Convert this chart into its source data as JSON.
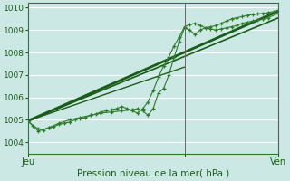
{
  "title": "",
  "xlabel": "Pression niveau de la mer( hPa )",
  "ylabel": "",
  "bg_color": "#cce8e4",
  "plot_bg_color": "#cce8e4",
  "grid_color": "#ffffff",
  "line_color_dark": "#1a5c1a",
  "line_color_med": "#2d7a2d",
  "ylim": [
    1003.5,
    1010.2
  ],
  "yticks": [
    1004,
    1005,
    1006,
    1007,
    1008,
    1009,
    1010
  ],
  "xlim": [
    0,
    48
  ],
  "xtick_positions": [
    0,
    30,
    48
  ],
  "xtick_labels": [
    "Jeu",
    "",
    "Ven"
  ],
  "vline_x": 30,
  "trend1_x": [
    0,
    48
  ],
  "trend1_y": [
    1004.95,
    1009.85
  ],
  "trend2_x": [
    0,
    48
  ],
  "trend2_y": [
    1004.95,
    1009.55
  ],
  "trend3_x": [
    0,
    30
  ],
  "trend3_y": [
    1004.95,
    1007.35
  ],
  "line1_x": [
    0,
    1,
    2,
    3,
    4,
    5,
    6,
    7,
    8,
    9,
    10,
    11,
    12,
    13,
    14,
    15,
    16,
    17,
    18,
    19,
    20,
    21,
    22,
    23,
    24,
    25,
    26,
    27,
    28,
    29,
    30,
    31,
    32,
    33,
    34,
    35,
    36,
    37,
    38,
    39,
    40,
    41,
    42,
    43,
    44,
    45,
    46,
    47,
    48
  ],
  "line1_y": [
    1004.95,
    1004.75,
    1004.6,
    1004.55,
    1004.65,
    1004.7,
    1004.8,
    1004.85,
    1004.9,
    1005.0,
    1005.05,
    1005.1,
    1005.2,
    1005.25,
    1005.35,
    1005.4,
    1005.45,
    1005.5,
    1005.6,
    1005.5,
    1005.4,
    1005.3,
    1005.5,
    1005.8,
    1006.3,
    1006.9,
    1007.4,
    1007.8,
    1008.3,
    1008.7,
    1009.15,
    1009.25,
    1009.3,
    1009.2,
    1009.1,
    1009.15,
    1009.2,
    1009.3,
    1009.4,
    1009.5,
    1009.55,
    1009.6,
    1009.65,
    1009.7,
    1009.72,
    1009.74,
    1009.78,
    1009.82,
    1009.88
  ],
  "line2_x": [
    0,
    2,
    4,
    6,
    8,
    10,
    12,
    14,
    16,
    18,
    20,
    21,
    22,
    23,
    24,
    25,
    26,
    27,
    28,
    29,
    30,
    31,
    32,
    33,
    34,
    35,
    36,
    37,
    38,
    39,
    40,
    41,
    42,
    43,
    44,
    45,
    46,
    48
  ],
  "line2_y": [
    1004.95,
    1004.5,
    1004.65,
    1004.85,
    1005.0,
    1005.1,
    1005.2,
    1005.3,
    1005.35,
    1005.4,
    1005.45,
    1005.5,
    1005.4,
    1005.2,
    1005.5,
    1006.2,
    1006.4,
    1007.0,
    1007.8,
    1008.5,
    1009.1,
    1009.0,
    1008.8,
    1009.0,
    1009.1,
    1009.05,
    1009.0,
    1009.05,
    1009.1,
    1009.15,
    1009.2,
    1009.3,
    1009.35,
    1009.4,
    1009.45,
    1009.5,
    1009.55,
    1009.75
  ],
  "figsize": [
    3.2,
    2.0
  ],
  "dpi": 100
}
